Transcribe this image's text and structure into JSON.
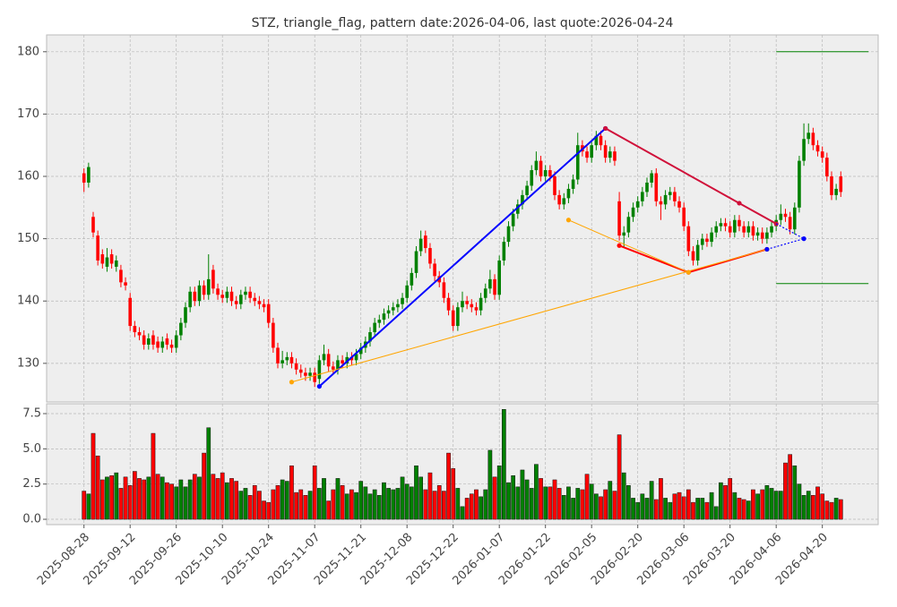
{
  "chart_data": {
    "type": "candlestick",
    "title": "STZ, triangle_flag, pattern date:2026-04-06, last quote:2026-04-24",
    "categories": [
      "2025-08-28",
      null,
      null,
      null,
      null,
      null,
      null,
      null,
      null,
      null,
      "2025-09-12",
      null,
      null,
      null,
      null,
      null,
      null,
      null,
      null,
      null,
      "2025-09-26",
      null,
      null,
      null,
      null,
      null,
      null,
      null,
      null,
      null,
      "2025-10-10",
      null,
      null,
      null,
      null,
      null,
      null,
      null,
      null,
      null,
      "2025-10-24",
      null,
      null,
      null,
      null,
      null,
      null,
      null,
      null,
      null,
      "2025-11-07",
      null,
      null,
      null,
      null,
      null,
      null,
      null,
      null,
      null,
      "2025-11-21",
      null,
      null,
      null,
      null,
      null,
      null,
      null,
      null,
      null,
      "2025-12-08",
      null,
      null,
      null,
      null,
      null,
      null,
      null,
      null,
      null,
      "2025-12-22",
      null,
      null,
      null,
      null,
      null,
      null,
      null,
      null,
      null,
      "2026-01-07",
      null,
      null,
      null,
      null,
      null,
      null,
      null,
      null,
      null,
      "2026-01-22",
      null,
      null,
      null,
      null,
      null,
      null,
      null,
      null,
      null,
      "2026-02-05",
      null,
      null,
      null,
      null,
      null,
      null,
      null,
      null,
      null,
      "2026-02-20",
      null,
      null,
      null,
      null,
      null,
      null,
      null,
      null,
      null,
      "2026-03-06",
      null,
      null,
      null,
      null,
      null,
      null,
      null,
      null,
      null,
      "2026-03-20",
      null,
      null,
      null,
      null,
      null,
      null,
      null,
      null,
      null,
      "2026-04-06",
      null,
      null,
      null,
      null,
      null,
      null,
      null,
      null,
      null,
      "2026-04-20",
      null,
      null,
      null,
      null
    ],
    "open": [
      160.5,
      159.0,
      153.5,
      150.5,
      147.5,
      145.5,
      147.5,
      145.5,
      145.0,
      143.0,
      140.5,
      136.0,
      135.0,
      134.5,
      133.0,
      134.5,
      133.5,
      132.5,
      134.0,
      133.0,
      132.5,
      134.5,
      136.5,
      139.0,
      141.5,
      140.0,
      142.5,
      141.0,
      145.0,
      142.0,
      141.0,
      140.5,
      141.5,
      140.0,
      139.5,
      141.0,
      141.5,
      140.5,
      140.0,
      139.5,
      139.5,
      136.5,
      132.5,
      130.0,
      130.5,
      131.0,
      130.0,
      129.0,
      128.5,
      128.0,
      128.5,
      127.5,
      130.5,
      131.5,
      129.5,
      129.0,
      130.5,
      130.0,
      131.0,
      130.5,
      131.5,
      132.5,
      133.5,
      135.0,
      136.5,
      137.0,
      138.0,
      138.5,
      139.0,
      139.5,
      140.5,
      142.5,
      144.5,
      148.0,
      150.5,
      148.5,
      146.0,
      144.0,
      143.0,
      140.5,
      138.5,
      136.0,
      139.0,
      140.0,
      139.5,
      139.0,
      138.5,
      140.5,
      142.0,
      143.5,
      141.0,
      146.5,
      149.5,
      152.0,
      154.0,
      155.5,
      157.0,
      158.5,
      161.0,
      162.5,
      160.0,
      161.0,
      160.0,
      157.0,
      155.5,
      156.5,
      158.0,
      159.5,
      165.0,
      164.0,
      163.0,
      165.0,
      166.5,
      165.0,
      163.0,
      164.0,
      156.0,
      150.5,
      151.0,
      153.5,
      155.0,
      156.0,
      157.5,
      159.0,
      160.5,
      156.0,
      155.5,
      157.0,
      157.5,
      156.0,
      155.0,
      152.0,
      148.0,
      146.5,
      149.0,
      150.0,
      149.5,
      151.0,
      152.0,
      152.5,
      152.0,
      151.0,
      153.0,
      152.0,
      151.0,
      152.0,
      150.5,
      151.0,
      150.0,
      151.0,
      152.0,
      153.0,
      154.0,
      153.5,
      151.5,
      155.0,
      162.5,
      166.0,
      167.0,
      165.0,
      164.0,
      163.0,
      160.0,
      157.0,
      160.0
    ],
    "high": [
      161.3,
      162.2,
      154.3,
      151.3,
      148.3,
      148.5,
      148.3,
      147.3,
      145.8,
      143.8,
      141.3,
      136.8,
      135.8,
      135.3,
      134.8,
      135.3,
      134.3,
      134.3,
      134.8,
      133.8,
      135.3,
      137.3,
      139.8,
      142.3,
      142.3,
      143.3,
      143.3,
      147.5,
      145.8,
      142.8,
      141.8,
      142.3,
      142.3,
      140.8,
      141.8,
      142.3,
      142.3,
      141.3,
      140.8,
      140.3,
      140.3,
      137.3,
      133.3,
      132.0,
      131.8,
      131.8,
      130.8,
      129.8,
      129.3,
      129.3,
      129.3,
      131.3,
      133.0,
      132.3,
      130.3,
      131.3,
      131.3,
      131.8,
      131.8,
      132.3,
      133.3,
      134.3,
      135.8,
      137.3,
      137.8,
      138.8,
      139.3,
      139.8,
      140.3,
      141.3,
      143.3,
      145.3,
      148.8,
      151.3,
      151.3,
      149.3,
      146.8,
      144.8,
      143.8,
      141.3,
      139.3,
      139.8,
      141.5,
      140.8,
      140.3,
      139.8,
      141.3,
      142.8,
      145.0,
      144.3,
      147.3,
      150.3,
      152.8,
      154.8,
      156.3,
      157.8,
      159.3,
      161.8,
      164.0,
      163.3,
      161.8,
      161.8,
      160.8,
      157.8,
      157.3,
      158.8,
      160.3,
      167.0,
      165.8,
      164.8,
      165.8,
      167.3,
      167.3,
      165.8,
      164.8,
      164.8,
      157.5,
      152.0,
      154.3,
      155.8,
      156.8,
      158.3,
      159.8,
      161.0,
      161.3,
      156.8,
      157.8,
      158.3,
      158.3,
      156.8,
      155.8,
      152.8,
      148.8,
      149.8,
      150.8,
      150.8,
      151.8,
      152.8,
      153.3,
      153.3,
      152.8,
      153.8,
      153.8,
      152.8,
      152.8,
      152.8,
      151.8,
      151.8,
      151.8,
      152.8,
      153.8,
      155.5,
      154.8,
      154.3,
      155.8,
      163.3,
      168.5,
      168.5,
      167.8,
      165.8,
      164.8,
      163.8,
      160.8,
      158.8,
      160.8
    ],
    "low": [
      157.5,
      158.2,
      150.2,
      145.7,
      145.2,
      144.7,
      145.2,
      144.7,
      142.2,
      141.7,
      135.2,
      134.2,
      133.7,
      132.2,
      132.2,
      132.2,
      131.7,
      131.7,
      132.2,
      131.7,
      131.7,
      133.7,
      135.7,
      138.2,
      139.2,
      139.2,
      140.2,
      140.2,
      141.2,
      140.2,
      139.7,
      139.7,
      139.2,
      138.7,
      138.7,
      140.2,
      139.7,
      139.2,
      138.7,
      138.2,
      135.7,
      131.7,
      129.2,
      129.2,
      129.7,
      129.2,
      128.2,
      127.7,
      127.2,
      127.2,
      126.2,
      126.7,
      129.7,
      128.7,
      128.2,
      128.2,
      129.2,
      129.2,
      129.7,
      129.7,
      130.7,
      131.7,
      132.7,
      134.2,
      135.7,
      136.2,
      137.2,
      137.7,
      138.2,
      138.7,
      139.7,
      141.7,
      143.7,
      147.2,
      147.7,
      145.2,
      143.2,
      142.2,
      139.7,
      137.7,
      135.2,
      135.2,
      138.2,
      138.7,
      138.2,
      137.7,
      137.7,
      139.7,
      141.2,
      140.2,
      140.2,
      145.7,
      148.7,
      151.2,
      153.2,
      154.7,
      156.2,
      157.7,
      160.2,
      159.2,
      159.2,
      159.2,
      156.2,
      154.7,
      154.7,
      155.7,
      157.2,
      158.7,
      163.2,
      162.2,
      162.2,
      164.2,
      164.2,
      162.2,
      162.2,
      161.7,
      149.7,
      148.5,
      150.2,
      152.7,
      154.2,
      155.2,
      156.7,
      158.2,
      155.2,
      153.0,
      154.7,
      156.2,
      155.2,
      154.2,
      151.2,
      147.2,
      145.7,
      145.7,
      148.2,
      148.7,
      148.7,
      150.2,
      151.2,
      151.2,
      150.2,
      150.2,
      151.2,
      150.2,
      150.2,
      149.7,
      149.7,
      149.2,
      149.2,
      150.2,
      151.2,
      152.2,
      152.7,
      150.7,
      150.7,
      154.2,
      161.7,
      165.2,
      164.2,
      163.2,
      162.2,
      159.2,
      156.2,
      156.2,
      156.7
    ],
    "close": [
      159.0,
      161.5,
      151.0,
      146.5,
      146.0,
      147.0,
      146.0,
      146.5,
      143.0,
      142.5,
      136.0,
      135.0,
      134.5,
      133.0,
      134.0,
      133.0,
      132.5,
      133.5,
      133.0,
      132.5,
      134.5,
      136.5,
      139.0,
      141.5,
      140.0,
      142.5,
      141.0,
      143.5,
      142.0,
      141.0,
      140.5,
      141.5,
      140.0,
      139.5,
      141.0,
      141.5,
      140.5,
      140.0,
      139.5,
      139.0,
      136.5,
      132.5,
      130.0,
      130.5,
      131.0,
      130.0,
      129.0,
      128.5,
      128.0,
      128.5,
      127.0,
      130.5,
      131.5,
      129.5,
      129.0,
      130.5,
      130.0,
      131.0,
      130.5,
      131.5,
      132.5,
      133.5,
      135.0,
      136.5,
      137.0,
      138.0,
      138.5,
      139.0,
      139.5,
      140.5,
      142.5,
      144.5,
      148.0,
      150.0,
      148.5,
      146.0,
      144.0,
      143.0,
      140.5,
      138.5,
      136.0,
      139.0,
      140.0,
      139.5,
      139.0,
      138.5,
      140.5,
      142.0,
      143.5,
      141.0,
      146.5,
      149.5,
      152.0,
      154.0,
      155.5,
      157.0,
      158.5,
      161.0,
      162.5,
      160.0,
      161.0,
      160.0,
      157.0,
      155.5,
      156.5,
      158.0,
      159.5,
      165.0,
      164.0,
      163.0,
      165.0,
      166.5,
      165.0,
      163.0,
      164.0,
      162.5,
      150.5,
      151.0,
      153.5,
      155.0,
      156.0,
      157.5,
      159.0,
      160.5,
      156.0,
      155.5,
      157.0,
      157.5,
      156.0,
      155.0,
      152.0,
      148.0,
      146.5,
      149.0,
      150.0,
      149.5,
      151.0,
      152.0,
      152.5,
      152.0,
      151.0,
      153.0,
      152.0,
      151.0,
      152.0,
      150.5,
      151.0,
      150.0,
      151.0,
      152.0,
      153.0,
      154.0,
      153.5,
      151.5,
      155.0,
      162.5,
      166.0,
      167.0,
      165.0,
      164.0,
      163.0,
      160.0,
      157.0,
      158.0,
      157.5
    ],
    "up_color": "#008000",
    "down_color": "#ff0000",
    "ylim": [
      123.8,
      182.7
    ],
    "yticks": [
      130,
      140,
      150,
      160,
      170,
      180
    ],
    "grid": true,
    "lines": [
      {
        "color": "#0000ff",
        "style": "solid",
        "points": [
          [
            51,
            126.3
          ],
          [
            113,
            167.7
          ]
        ]
      },
      {
        "color": "#d0103a",
        "style": "solid",
        "points": [
          [
            113,
            167.7
          ],
          [
            142,
            155.7
          ],
          [
            150,
            152.4
          ]
        ]
      },
      {
        "color": "#ff0000",
        "style": "solid",
        "points": [
          [
            116,
            148.9
          ],
          [
            131,
            144.6
          ],
          [
            148,
            148.3
          ]
        ]
      },
      {
        "color": "#ffa500",
        "style": "thin",
        "points": [
          [
            45,
            127.0
          ],
          [
            148,
            148.3
          ]
        ]
      },
      {
        "color": "#ffa500",
        "style": "thin",
        "points": [
          [
            105,
            153.0
          ],
          [
            131,
            144.6
          ]
        ]
      },
      {
        "color": "#0000ff",
        "style": "dotted",
        "points": [
          [
            150,
            152.4
          ],
          [
            156,
            150.0
          ]
        ]
      },
      {
        "color": "#0000ff",
        "style": "dotted",
        "points": [
          [
            148,
            148.3
          ],
          [
            156,
            150.0
          ]
        ]
      }
    ],
    "levels": [
      {
        "color": "#008000",
        "value": 180,
        "from": 150,
        "to": 170
      },
      {
        "color": "#008000",
        "value": 142.8,
        "from": 150,
        "to": 170
      }
    ],
    "volume": {
      "values": [
        2.0,
        1.8,
        6.1,
        4.5,
        2.8,
        3.0,
        3.1,
        3.3,
        2.2,
        3.0,
        2.4,
        3.4,
        2.9,
        2.8,
        3.0,
        6.1,
        3.2,
        3.0,
        2.6,
        2.5,
        2.3,
        2.8,
        2.3,
        2.8,
        3.2,
        3.0,
        4.7,
        6.5,
        3.2,
        2.9,
        3.3,
        2.6,
        2.9,
        2.7,
        2.0,
        2.2,
        1.7,
        2.4,
        2.0,
        1.3,
        1.2,
        2.1,
        2.4,
        2.8,
        2.7,
        3.8,
        1.9,
        2.1,
        1.7,
        2.0,
        3.8,
        2.2,
        2.9,
        1.3,
        2.1,
        2.9,
        2.4,
        1.8,
        2.1,
        1.9,
        2.7,
        2.3,
        1.8,
        2.1,
        1.7,
        2.6,
        2.2,
        2.1,
        2.2,
        3.0,
        2.5,
        2.3,
        3.8,
        3.0,
        2.1,
        3.3,
        2.0,
        2.4,
        2.0,
        4.7,
        3.6,
        2.2,
        0.9,
        1.5,
        1.8,
        2.1,
        1.6,
        2.1,
        4.9,
        3.0,
        3.8,
        7.8,
        2.6,
        3.1,
        2.3,
        3.5,
        2.8,
        2.2,
        3.9,
        2.9,
        2.3,
        2.3,
        2.8,
        2.2,
        1.7,
        2.3,
        1.5,
        2.2,
        2.1,
        3.2,
        2.5,
        1.8,
        1.6,
        2.1,
        2.7,
        2.0,
        6.0,
        3.3,
        2.4,
        1.5,
        1.2,
        1.8,
        1.5,
        2.7,
        1.4,
        2.9,
        1.5,
        1.2,
        1.8,
        1.9,
        1.6,
        2.1,
        1.2,
        1.5,
        1.5,
        1.2,
        1.9,
        0.9,
        2.6,
        2.4,
        2.9,
        1.9,
        1.5,
        1.4,
        1.3,
        2.1,
        1.8,
        2.1,
        2.4,
        2.2,
        2.0,
        2.0,
        4.0,
        4.6,
        3.8,
        2.5,
        1.7,
        2.0,
        1.7,
        2.3,
        1.8,
        1.3,
        1.2,
        1.5,
        1.4
      ],
      "ylim": [
        -0.38,
        8.2
      ],
      "yticks": [
        {
          "value": 0,
          "label": "0.0"
        },
        2.5,
        {
          "value": 5,
          "label": "5.0"
        },
        7.5
      ]
    }
  }
}
